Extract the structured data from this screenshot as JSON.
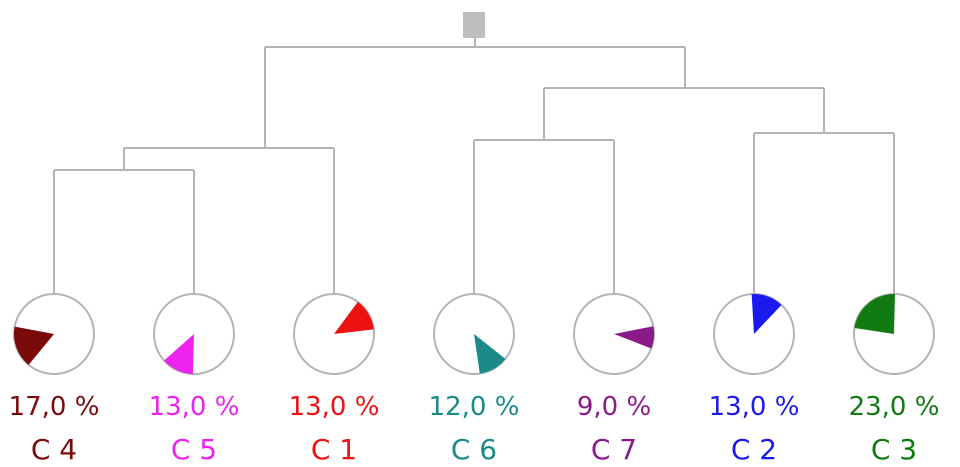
{
  "tree": {
    "line_color": "#b4b4b4",
    "root_marker_color": "#bdbdbd",
    "circle_stroke": "#b4b4b4",
    "leaves": [
      {
        "label": "C 4",
        "percent": "17,0 %",
        "value": 17.0,
        "color": "#7a0a0a",
        "direction_deg": 250
      },
      {
        "label": "C 5",
        "percent": "13,0 %",
        "value": 13.0,
        "color": "#ee22ee",
        "direction_deg": 205
      },
      {
        "label": "C 1",
        "percent": "13,0 %",
        "value": 13.0,
        "color": "#ee1111",
        "direction_deg": 60
      },
      {
        "label": "C 6",
        "percent": "12,0 %",
        "value": 12.0,
        "color": "#1a8a8a",
        "direction_deg": 150
      },
      {
        "label": "C 7",
        "percent": "9,0 %",
        "value": 9.0,
        "color": "#8a1a8a",
        "direction_deg": 95
      },
      {
        "label": "C 2",
        "percent": "13,0 %",
        "value": 13.0,
        "color": "#1a1aee",
        "direction_deg": 20
      },
      {
        "label": "C 3",
        "percent": "23,0 %",
        "value": 23.0,
        "color": "#127a12",
        "direction_deg": 320
      }
    ]
  }
}
